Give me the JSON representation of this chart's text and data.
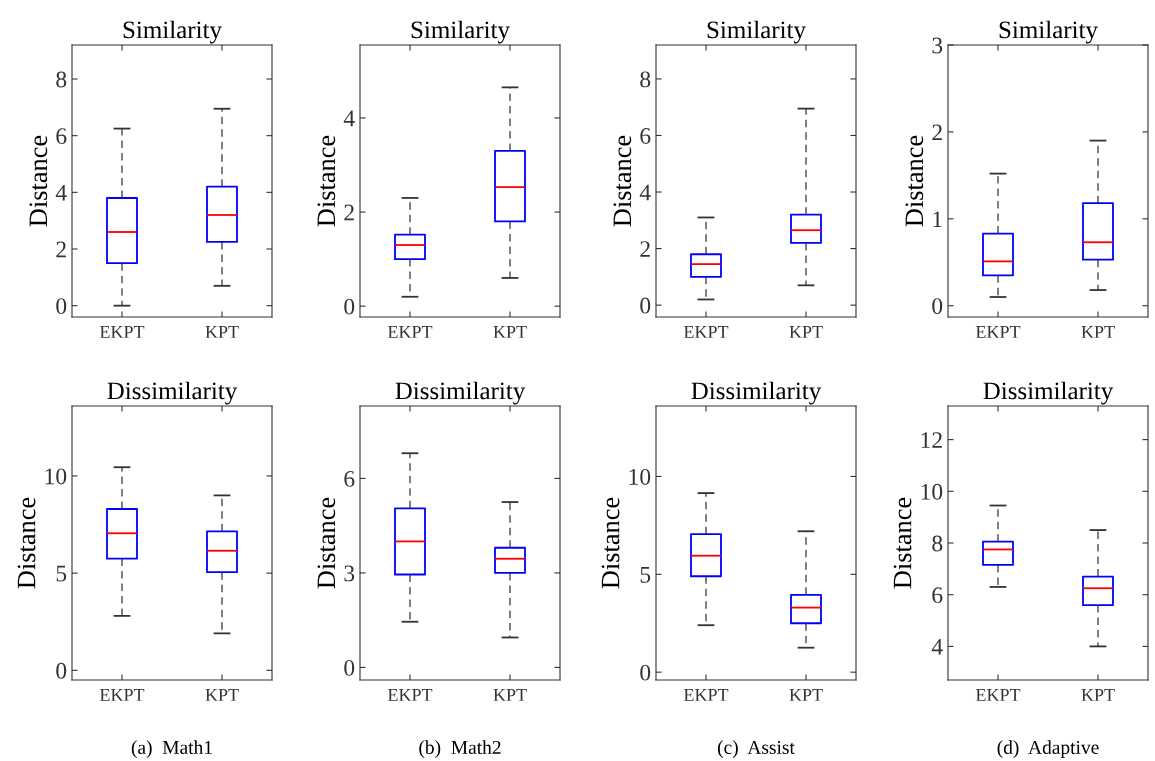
{
  "chart_data": [
    {
      "type": "box",
      "title": "Similarity",
      "ylabel": "Distance",
      "categories": [
        "EKPT",
        "KPT"
      ],
      "ylim": [
        -0.4,
        9.2
      ],
      "yticks": [
        0,
        2,
        4,
        6,
        8
      ],
      "series": [
        {
          "color": "#0000ff",
          "boxes": [
            {
              "low": 0.0,
              "q1": 1.5,
              "median": 2.6,
              "q3": 3.8,
              "high": 6.25
            },
            {
              "low": 0.7,
              "q1": 2.25,
              "median": 3.2,
              "q3": 4.2,
              "high": 6.95
            }
          ]
        }
      ]
    },
    {
      "type": "box",
      "title": "Similarity",
      "ylabel": "Distance",
      "categories": [
        "EKPT",
        "KPT"
      ],
      "ylim": [
        -0.23,
        5.55
      ],
      "yticks": [
        0,
        2,
        4
      ],
      "series": [
        {
          "color": "#0000ff",
          "boxes": [
            {
              "low": 0.2,
              "q1": 1.0,
              "median": 1.3,
              "q3": 1.52,
              "high": 2.3
            },
            {
              "low": 0.6,
              "q1": 1.8,
              "median": 2.53,
              "q3": 3.3,
              "high": 4.65
            }
          ]
        }
      ]
    },
    {
      "type": "box",
      "title": "Similarity",
      "ylabel": "Distance",
      "categories": [
        "EKPT",
        "KPT"
      ],
      "ylim": [
        -0.42,
        9.2
      ],
      "yticks": [
        0,
        2,
        4,
        6,
        8
      ],
      "series": [
        {
          "color": "#0000ff",
          "boxes": [
            {
              "low": 0.2,
              "q1": 1.0,
              "median": 1.45,
              "q3": 1.8,
              "high": 3.1
            },
            {
              "low": 0.7,
              "q1": 2.2,
              "median": 2.65,
              "q3": 3.2,
              "high": 6.95
            }
          ]
        }
      ]
    },
    {
      "type": "box",
      "title": "Similarity",
      "ylabel": "Distance",
      "categories": [
        "EKPT",
        "KPT"
      ],
      "ylim": [
        -0.13,
        3.0
      ],
      "yticks": [
        0,
        1,
        2,
        3
      ],
      "series": [
        {
          "color": "#0000ff",
          "boxes": [
            {
              "low": 0.1,
              "q1": 0.35,
              "median": 0.51,
              "q3": 0.83,
              "high": 1.52
            },
            {
              "low": 0.18,
              "q1": 0.53,
              "median": 0.73,
              "q3": 1.18,
              "high": 1.9
            }
          ]
        }
      ]
    },
    {
      "type": "box",
      "title": "Dissimilarity",
      "ylabel": "Distance",
      "categories": [
        "EKPT",
        "KPT"
      ],
      "ylim": [
        -0.5,
        13.6
      ],
      "yticks": [
        0,
        5,
        10
      ],
      "annotations": [
        "(a)  Math1"
      ],
      "series": [
        {
          "color": "#0000ff",
          "boxes": [
            {
              "low": 2.8,
              "q1": 5.75,
              "median": 7.05,
              "q3": 8.3,
              "high": 10.45
            },
            {
              "low": 1.9,
              "q1": 5.05,
              "median": 6.15,
              "q3": 7.15,
              "high": 9.0
            }
          ]
        }
      ]
    },
    {
      "type": "box",
      "title": "Dissimilarity",
      "ylabel": "Distance",
      "categories": [
        "EKPT",
        "KPT"
      ],
      "ylim": [
        -0.4,
        8.3
      ],
      "yticks": [
        0,
        3,
        6
      ],
      "annotations": [
        "(b)  Math2"
      ],
      "series": [
        {
          "color": "#0000ff",
          "boxes": [
            {
              "low": 1.45,
              "q1": 2.95,
              "median": 4.0,
              "q3": 5.05,
              "high": 6.8
            },
            {
              "low": 0.95,
              "q1": 3.0,
              "median": 3.45,
              "q3": 3.8,
              "high": 5.25
            }
          ]
        }
      ]
    },
    {
      "type": "box",
      "title": "Dissimilarity",
      "ylabel": "Distance",
      "categories": [
        "EKPT",
        "KPT"
      ],
      "ylim": [
        -0.4,
        13.6
      ],
      "yticks": [
        0,
        5,
        10
      ],
      "annotations": [
        "(c)  Assist"
      ],
      "series": [
        {
          "color": "#0000ff",
          "boxes": [
            {
              "low": 2.4,
              "q1": 4.9,
              "median": 5.95,
              "q3": 7.05,
              "high": 9.15
            },
            {
              "low": 1.25,
              "q1": 2.5,
              "median": 3.3,
              "q3": 3.95,
              "high": 7.2
            }
          ]
        }
      ]
    },
    {
      "type": "box",
      "title": "Dissimilarity",
      "ylabel": "Distance",
      "categories": [
        "EKPT",
        "KPT"
      ],
      "ylim": [
        2.7,
        13.3
      ],
      "yticks": [
        4,
        6,
        8,
        10,
        12
      ],
      "annotations": [
        "(d)  Adaptive"
      ],
      "series": [
        {
          "color": "#0000ff",
          "boxes": [
            {
              "low": 6.3,
              "q1": 7.15,
              "median": 7.75,
              "q3": 8.05,
              "high": 9.45
            },
            {
              "low": 4.0,
              "q1": 5.6,
              "median": 6.25,
              "q3": 6.7,
              "high": 8.5
            }
          ]
        }
      ]
    }
  ]
}
